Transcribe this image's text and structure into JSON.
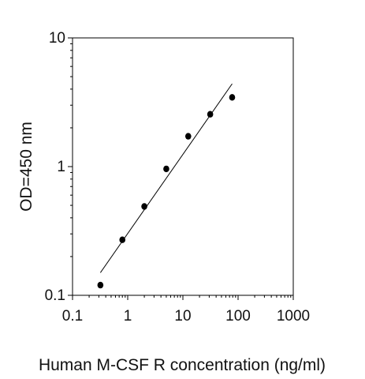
{
  "chart_data": {
    "type": "scatter",
    "title": "",
    "xlabel": "Human M-CSF R concentration (ng/ml)",
    "ylabel": "OD=450 nm",
    "x_scale": "log",
    "y_scale": "log",
    "xlim": [
      0.1,
      1000
    ],
    "ylim": [
      0.1,
      10
    ],
    "x_ticks": [
      0.1,
      1,
      10,
      100,
      1000
    ],
    "x_tick_labels": [
      "0.1",
      "1",
      "10",
      "100",
      "1000"
    ],
    "y_ticks": [
      0.1,
      1,
      10
    ],
    "y_tick_labels": [
      "0.1",
      "1",
      "10"
    ],
    "grid": false,
    "points": [
      {
        "x": 0.32,
        "y": 0.12
      },
      {
        "x": 0.8,
        "y": 0.27
      },
      {
        "x": 2.0,
        "y": 0.49
      },
      {
        "x": 5.0,
        "y": 0.96
      },
      {
        "x": 12.5,
        "y": 1.72
      },
      {
        "x": 31.25,
        "y": 2.55
      },
      {
        "x": 78.1,
        "y": 3.45
      }
    ],
    "fit_line": {
      "x": [
        0.32,
        78.1
      ],
      "y": [
        0.15,
        4.4
      ]
    },
    "colors": {
      "points": "#000000",
      "line": "#000000",
      "axes": "#000000"
    }
  }
}
